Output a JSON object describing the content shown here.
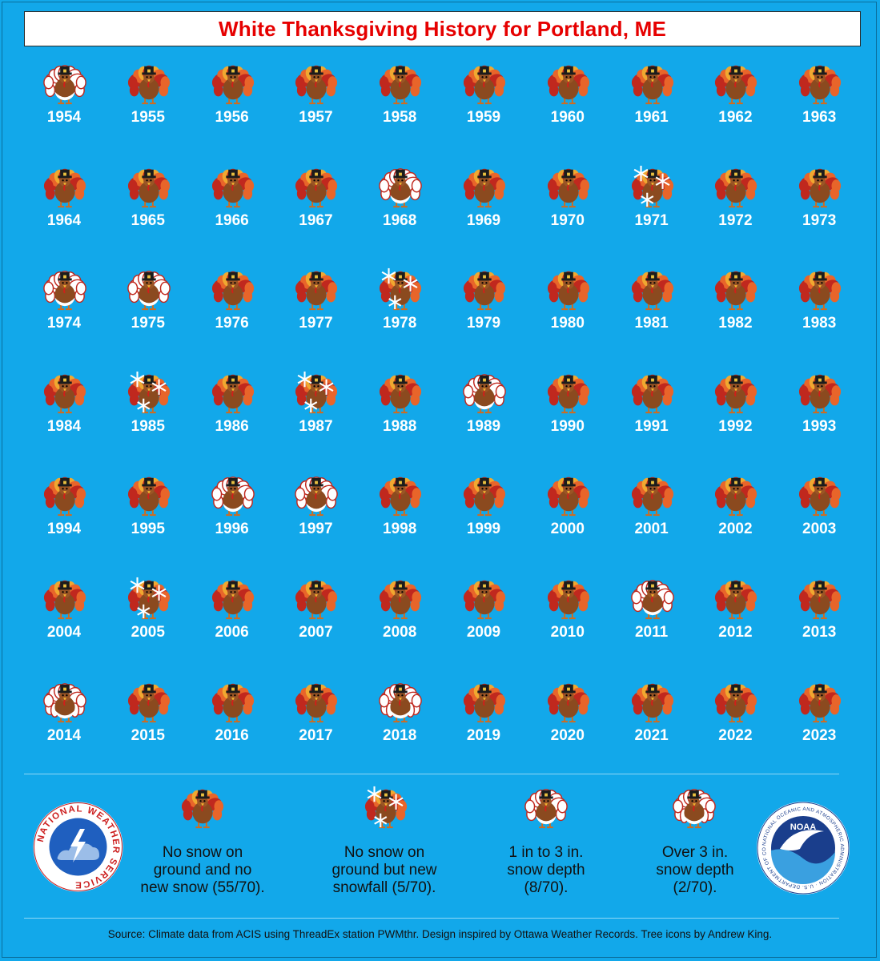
{
  "title": "White Thanksgiving History for Portland, ME",
  "colors": {
    "background": "#12A8EA",
    "title_text": "#e60000",
    "turkey_body": "#8B4A1F",
    "turkey_feather_orange": "#E8652A",
    "turkey_feather_red": "#C0281E",
    "turkey_feather_yellow": "#F0A830",
    "snow": "#FFFFFF"
  },
  "chart_data": {
    "type": "table",
    "title": "White Thanksgiving History for Portland, ME",
    "categories": {
      "none": "No snow on ground and no new snow (55/70).",
      "newsnow": "No snow on ground but new snowfall (5/70).",
      "depth1to3": "1 in to 3 in. snow depth (8/70).",
      "over3": "Over 3 in. snow depth (2/70)."
    },
    "years": [
      {
        "year": "1954",
        "category": "depth1to3"
      },
      {
        "year": "1955",
        "category": "none"
      },
      {
        "year": "1956",
        "category": "none"
      },
      {
        "year": "1957",
        "category": "none"
      },
      {
        "year": "1958",
        "category": "none"
      },
      {
        "year": "1959",
        "category": "none"
      },
      {
        "year": "1960",
        "category": "none"
      },
      {
        "year": "1961",
        "category": "none"
      },
      {
        "year": "1962",
        "category": "none"
      },
      {
        "year": "1963",
        "category": "none"
      },
      {
        "year": "1964",
        "category": "none"
      },
      {
        "year": "1965",
        "category": "none"
      },
      {
        "year": "1966",
        "category": "none"
      },
      {
        "year": "1967",
        "category": "none"
      },
      {
        "year": "1968",
        "category": "depth1to3"
      },
      {
        "year": "1969",
        "category": "none"
      },
      {
        "year": "1970",
        "category": "none"
      },
      {
        "year": "1971",
        "category": "newsnow"
      },
      {
        "year": "1972",
        "category": "none"
      },
      {
        "year": "1973",
        "category": "none"
      },
      {
        "year": "1974",
        "category": "depth1to3"
      },
      {
        "year": "1975",
        "category": "depth1to3"
      },
      {
        "year": "1976",
        "category": "none"
      },
      {
        "year": "1977",
        "category": "none"
      },
      {
        "year": "1978",
        "category": "newsnow"
      },
      {
        "year": "1979",
        "category": "none"
      },
      {
        "year": "1980",
        "category": "none"
      },
      {
        "year": "1981",
        "category": "none"
      },
      {
        "year": "1982",
        "category": "none"
      },
      {
        "year": "1983",
        "category": "none"
      },
      {
        "year": "1984",
        "category": "none"
      },
      {
        "year": "1985",
        "category": "newsnow"
      },
      {
        "year": "1986",
        "category": "none"
      },
      {
        "year": "1987",
        "category": "newsnow"
      },
      {
        "year": "1988",
        "category": "none"
      },
      {
        "year": "1989",
        "category": "depth1to3"
      },
      {
        "year": "1990",
        "category": "none"
      },
      {
        "year": "1991",
        "category": "none"
      },
      {
        "year": "1992",
        "category": "none"
      },
      {
        "year": "1993",
        "category": "none"
      },
      {
        "year": "1994",
        "category": "none"
      },
      {
        "year": "1995",
        "category": "none"
      },
      {
        "year": "1996",
        "category": "depth1to3"
      },
      {
        "year": "1997",
        "category": "depth1to3"
      },
      {
        "year": "1998",
        "category": "none"
      },
      {
        "year": "1999",
        "category": "none"
      },
      {
        "year": "2000",
        "category": "none"
      },
      {
        "year": "2001",
        "category": "none"
      },
      {
        "year": "2002",
        "category": "none"
      },
      {
        "year": "2003",
        "category": "none"
      },
      {
        "year": "2004",
        "category": "none"
      },
      {
        "year": "2005",
        "category": "newsnow"
      },
      {
        "year": "2006",
        "category": "none"
      },
      {
        "year": "2007",
        "category": "none"
      },
      {
        "year": "2008",
        "category": "none"
      },
      {
        "year": "2009",
        "category": "none"
      },
      {
        "year": "2010",
        "category": "none"
      },
      {
        "year": "2011",
        "category": "depth1to3"
      },
      {
        "year": "2012",
        "category": "none"
      },
      {
        "year": "2013",
        "category": "none"
      },
      {
        "year": "2014",
        "category": "over3"
      },
      {
        "year": "2015",
        "category": "none"
      },
      {
        "year": "2016",
        "category": "none"
      },
      {
        "year": "2017",
        "category": "none"
      },
      {
        "year": "2018",
        "category": "over3"
      },
      {
        "year": "2019",
        "category": "none"
      },
      {
        "year": "2020",
        "category": "none"
      },
      {
        "year": "2021",
        "category": "none"
      },
      {
        "year": "2022",
        "category": "none"
      },
      {
        "year": "2023",
        "category": "none"
      }
    ]
  },
  "legend": [
    {
      "category": "none",
      "text": "No snow on\nground and no\nnew snow (55/70)."
    },
    {
      "category": "newsnow",
      "text": "No snow on\nground but new\nsnowfall (5/70)."
    },
    {
      "category": "depth1to3",
      "text": "1 in to 3 in.\nsnow depth\n(8/70)."
    },
    {
      "category": "over3",
      "text": "Over 3 in.\nsnow depth\n(2/70)."
    }
  ],
  "logos": {
    "nws_text": "NATIONAL WEATHER SERVICE",
    "noaa_text": "NOAA",
    "noaa_ring_text": "NATIONAL OCEANIC AND ATMOSPHERIC ADMINISTRATION · U.S. DEPARTMENT OF COMMERCE"
  },
  "source": "Source: Climate data from ACIS using ThreadEx station PWMthr. Design inspired by Ottawa Weather Records. Tree icons by Andrew King."
}
